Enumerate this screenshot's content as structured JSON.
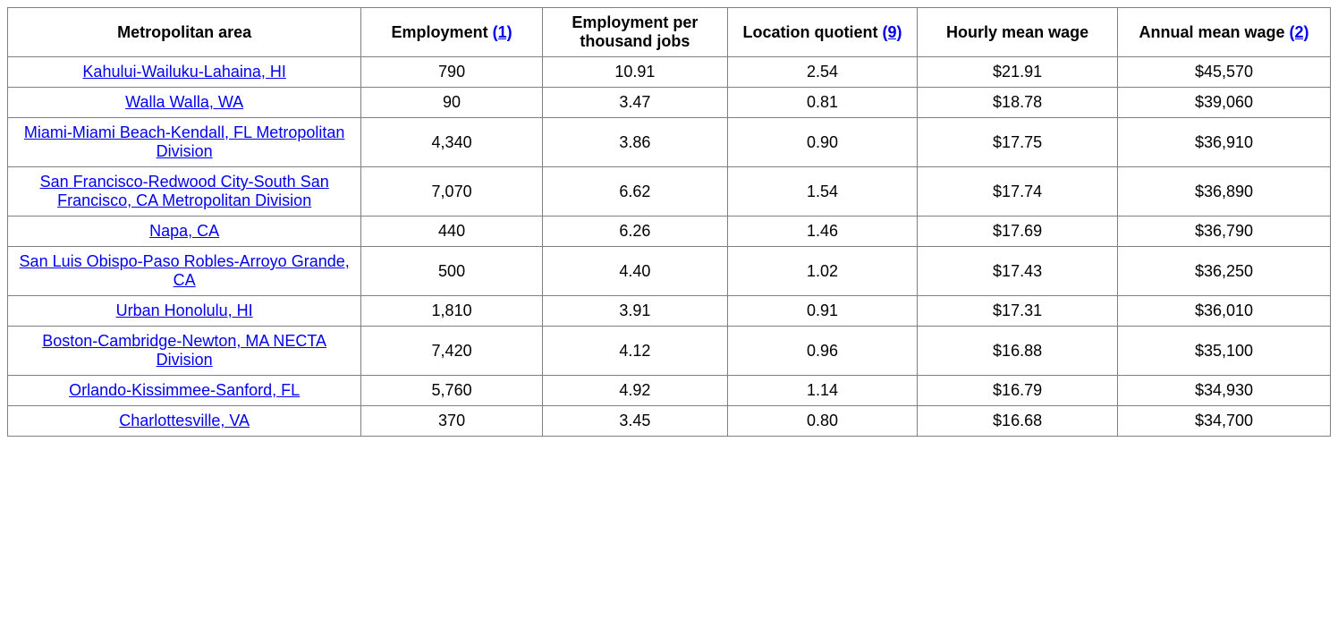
{
  "table": {
    "columns": [
      {
        "label": "Metropolitan area",
        "footnote": null
      },
      {
        "label": "Employment ",
        "footnote": "(1)"
      },
      {
        "label": "Employment per thousand jobs",
        "footnote": null
      },
      {
        "label": "Location quotient ",
        "footnote": "(9)"
      },
      {
        "label": "Hourly mean wage",
        "footnote": null
      },
      {
        "label": "Annual mean wage ",
        "footnote": "(2)"
      }
    ],
    "rows": [
      {
        "area": "Kahului-Wailuku-Lahaina, HI",
        "employment": "790",
        "per_thousand": "10.91",
        "lq": "2.54",
        "hourly": "$21.91",
        "annual": "$45,570"
      },
      {
        "area": "Walla Walla, WA",
        "employment": "90",
        "per_thousand": "3.47",
        "lq": "0.81",
        "hourly": "$18.78",
        "annual": "$39,060"
      },
      {
        "area": "Miami-Miami Beach-Kendall, FL Metropolitan Division",
        "employment": "4,340",
        "per_thousand": "3.86",
        "lq": "0.90",
        "hourly": "$17.75",
        "annual": "$36,910"
      },
      {
        "area": "San Francisco-Redwood City-South San Francisco, CA Metropolitan Division",
        "employment": "7,070",
        "per_thousand": "6.62",
        "lq": "1.54",
        "hourly": "$17.74",
        "annual": "$36,890"
      },
      {
        "area": "Napa, CA",
        "employment": "440",
        "per_thousand": "6.26",
        "lq": "1.46",
        "hourly": "$17.69",
        "annual": "$36,790"
      },
      {
        "area": "San Luis Obispo-Paso Robles-Arroyo Grande, CA",
        "employment": "500",
        "per_thousand": "4.40",
        "lq": "1.02",
        "hourly": "$17.43",
        "annual": "$36,250"
      },
      {
        "area": "Urban Honolulu, HI",
        "employment": "1,810",
        "per_thousand": "3.91",
        "lq": "0.91",
        "hourly": "$17.31",
        "annual": "$36,010"
      },
      {
        "area": "Boston-Cambridge-Newton, MA NECTA Division",
        "employment": "7,420",
        "per_thousand": "4.12",
        "lq": "0.96",
        "hourly": "$16.88",
        "annual": "$35,100"
      },
      {
        "area": "Orlando-Kissimmee-Sanford, FL",
        "employment": "5,760",
        "per_thousand": "4.92",
        "lq": "1.14",
        "hourly": "$16.79",
        "annual": "$34,930"
      },
      {
        "area": "Charlottesville, VA",
        "employment": "370",
        "per_thousand": "3.45",
        "lq": "0.80",
        "hourly": "$16.68",
        "annual": "$34,700"
      }
    ]
  }
}
